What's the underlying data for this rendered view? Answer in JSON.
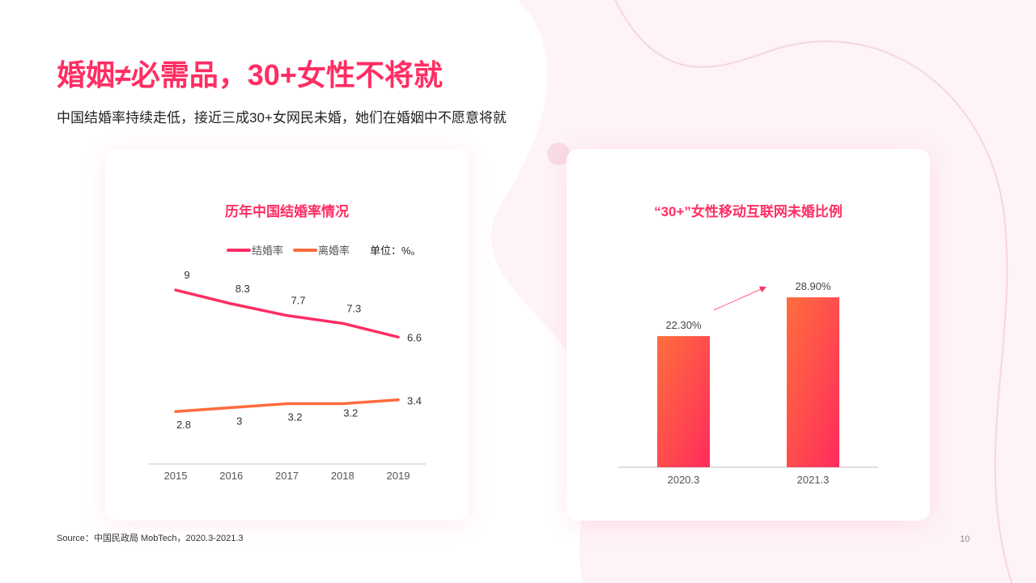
{
  "header": {
    "title": "婚姻≠必需品，30+女性不将就",
    "subtitle": "中国结婚率持续走低，接近三成30+女网民未婚，她们在婚姻中不愿意将就"
  },
  "colors": {
    "accent": "#ff2e63",
    "orange": "#ff6b3d",
    "axis": "#d9d9d9"
  },
  "chart_data": [
    {
      "type": "line",
      "title": "历年中国结婚率情况",
      "unit_note": "单位：%。",
      "categories": [
        "2015",
        "2016",
        "2017",
        "2018",
        "2019"
      ],
      "series": [
        {
          "name": "结婚率",
          "values": [
            9,
            8.3,
            7.7,
            7.3,
            6.6
          ],
          "color": "#ff2e63"
        },
        {
          "name": "离婚率",
          "values": [
            2.8,
            3,
            3.2,
            3.2,
            3.4
          ],
          "color": "#ff6b3d"
        }
      ],
      "ylim": [
        0,
        9
      ],
      "grid": false,
      "legend": "top-right"
    },
    {
      "type": "bar",
      "title": "“30+”女性移动互联网未婚比例",
      "categories": [
        "2020.3",
        "2021.3"
      ],
      "values": [
        22.3,
        28.9
      ],
      "labels": [
        "22.30%",
        "28.90%"
      ],
      "ylim": [
        0,
        30
      ],
      "grid": false
    }
  ],
  "footer": {
    "source": "Source：中国民政局 MobTech，2020.3-2021.3",
    "page_number": "10"
  }
}
